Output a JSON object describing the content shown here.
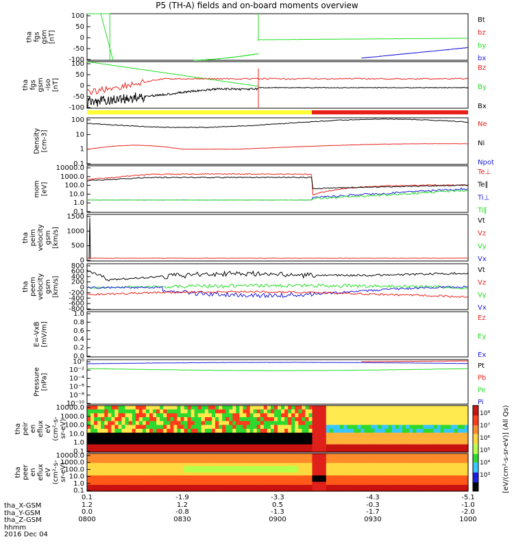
{
  "title": "P5 (TH-A) fields and on-board moments overview",
  "colors": {
    "black": "#000000",
    "red": "#e8201a",
    "green": "#22dd22",
    "blue": "#1a1adc",
    "yellow": "#ffff33"
  },
  "chart_data": {
    "type": "line",
    "x_ticks": [
      "0800",
      "0830",
      "0900",
      "0930",
      "1000"
    ],
    "date_label": "2016 Dec 04",
    "ephemeris": [
      {
        "label": "tha_X-GSM",
        "values": [
          "0.1",
          "-1.9",
          "-3.3",
          "-4.3",
          "-5.1"
        ]
      },
      {
        "label": "tha_Y-GSM",
        "values": [
          "1.2",
          "1.2",
          "0.5",
          "-0.3",
          "-1.0"
        ]
      },
      {
        "label": "tha_Z-GSM",
        "values": [
          "0.0",
          "-0.8",
          "-1.3",
          "-1.7",
          "-2.0"
        ]
      },
      {
        "label": "hhmm",
        "values": [
          "0800",
          "0830",
          "0900",
          "0930",
          "1000"
        ]
      }
    ],
    "panels": [
      {
        "id": "fgs",
        "ylabel": [
          "tha",
          "fgs",
          "gsm",
          "[nT]"
        ],
        "yticks": [
          "100",
          "50",
          "0",
          "-50",
          "-100"
        ],
        "ylim": [
          -100,
          100
        ],
        "legend": [
          "Bt",
          "bz",
          "by",
          "bx"
        ]
      },
      {
        "id": "fgs2",
        "ylabel": [
          "tha",
          "fgs",
          "gsm",
          "-iso",
          "[nT]"
        ],
        "yticks": [
          "100",
          "50",
          "0",
          "-50",
          "-100"
        ],
        "ylim": [
          -120,
          100
        ],
        "legend": [
          "Bz",
          "By",
          "Bx"
        ]
      },
      {
        "id": "density",
        "ylabel": [
          "Density",
          "[cm-3]"
        ],
        "yticks": [
          "100",
          "10",
          "1",
          "0.1"
        ],
        "legend": [
          "Ne",
          "Ni",
          "Npot"
        ]
      },
      {
        "id": "temp",
        "ylabel": [
          "mom",
          "[eV]"
        ],
        "yticks": [
          "10000.0",
          "1000.0",
          "100.0",
          "10.0",
          "1.0",
          "0.1"
        ],
        "legend": [
          "Te⊥",
          "Te∥",
          "Ti⊥",
          "Ti∥"
        ]
      },
      {
        "id": "veli",
        "ylabel": [
          "tha",
          "peim",
          "velocity",
          "gsm",
          "[km/s]"
        ],
        "yticks": [
          "1500",
          "1000",
          "500",
          "0"
        ],
        "legend": [
          "Vt",
          "Vz",
          "Vy",
          "Vx"
        ]
      },
      {
        "id": "vele",
        "ylabel": [
          "tha",
          "peem",
          "velocity",
          "gsm",
          "[km/s]"
        ],
        "yticks": [
          "800",
          "600",
          "400",
          "200",
          "0",
          "-200",
          "-400",
          "-600",
          "-800"
        ],
        "legend": [
          "Vt",
          "Vz",
          "Vy",
          "Vx"
        ]
      },
      {
        "id": "efield",
        "ylabel": [
          "E=-VxB",
          "[mV/m]"
        ],
        "yticks": [
          "1.0",
          "0.8",
          "0.6",
          "0.4",
          "0.2",
          "0.0"
        ],
        "legend": [
          "Ez",
          "Ey",
          "Ex"
        ]
      },
      {
        "id": "pressure",
        "ylabel": [
          "Pressure",
          "[nPa]"
        ],
        "yticks": [
          "10⁰",
          "10⁻²",
          "10⁻⁴",
          "10⁻⁶",
          "10⁻⁸",
          "10⁻¹⁰"
        ],
        "legend": [
          "Pt",
          "Pb",
          "Pe",
          "Pi"
        ]
      },
      {
        "id": "specI",
        "ylabel": [
          "tha",
          "peir",
          "en",
          "eflux",
          "eV",
          "(cm²-s-",
          "sr-eV)"
        ],
        "yticks": [
          "10000.0",
          "1000.0",
          "100.0",
          "10.0",
          "1.0",
          "0.1"
        ]
      },
      {
        "id": "specE",
        "ylabel": [
          "tha",
          "peer",
          "en",
          "eflux",
          "eV",
          "(cm²-s-",
          "sr-eV)"
        ],
        "yticks": [
          "10000.0",
          "1000.0",
          "100.0",
          "10.0",
          "1.0",
          "0.1"
        ]
      }
    ],
    "colorbar": {
      "ticks": [
        "10⁸",
        "10⁷",
        "10⁶",
        "10⁵",
        "10⁴",
        "10³"
      ],
      "label": "[eV/(cm²-s-sr-eV)] (All Qs)"
    },
    "mode_bar": {
      "segments": [
        {
          "color": "yellow",
          "to": "0906"
        },
        {
          "color": "red",
          "to": "1000"
        }
      ]
    }
  }
}
